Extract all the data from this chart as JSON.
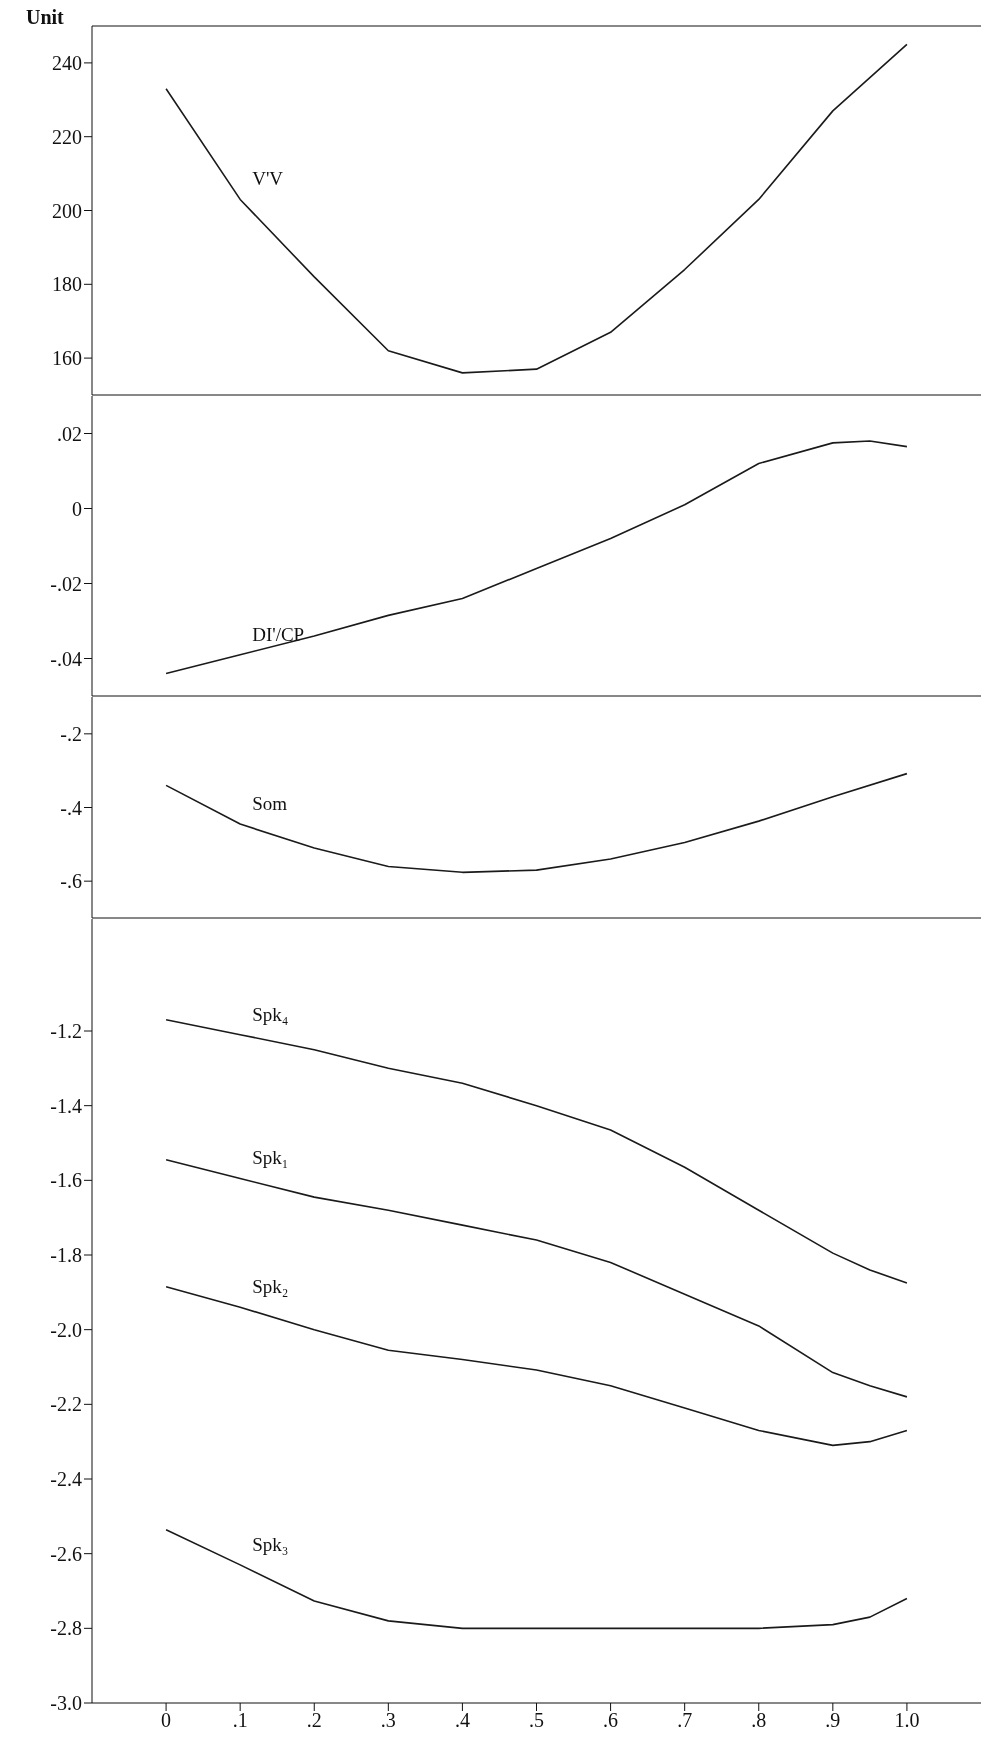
{
  "chart_data": [
    {
      "type": "line",
      "ylabel": "Unit",
      "x": [
        0,
        0.1,
        0.2,
        0.3,
        0.4,
        0.5,
        0.6,
        0.7,
        0.8,
        0.9,
        1.0
      ],
      "series": [
        {
          "name": "V'V",
          "color": "#1a1a1a",
          "values": [
            233,
            203,
            182,
            162,
            156,
            157,
            167,
            184,
            203,
            227,
            245
          ]
        }
      ],
      "xlim": [
        -0.1,
        1.1
      ],
      "ylim": [
        150,
        250
      ],
      "yticks": [
        160,
        180,
        200,
        220,
        240
      ],
      "tick_labels": "y"
    },
    {
      "type": "line",
      "x": [
        0,
        0.1,
        0.2,
        0.3,
        0.4,
        0.5,
        0.6,
        0.7,
        0.8,
        0.9,
        0.95,
        1.0
      ],
      "series": [
        {
          "name": "DI'/CP",
          "color": "#1a1a1a",
          "values": [
            -0.044,
            -0.039,
            -0.034,
            -0.0285,
            -0.024,
            -0.016,
            -0.008,
            0.001,
            0.012,
            0.0175,
            0.018,
            0.0165
          ]
        }
      ],
      "xlim": [
        -0.1,
        1.1
      ],
      "ylim": [
        -0.05,
        0.03
      ],
      "yticks": [
        {
          "value": -0.04,
          "label": "-.04"
        },
        {
          "value": -0.02,
          "label": "-.02"
        },
        0,
        {
          "value": 0.02,
          "label": ".02"
        }
      ],
      "tick_labels": "y"
    },
    {
      "type": "line",
      "x": [
        0,
        0.1,
        0.2,
        0.3,
        0.4,
        0.5,
        0.6,
        0.7,
        0.8,
        0.9,
        1.0
      ],
      "series": [
        {
          "name": "Som",
          "color": "#1a1a1a",
          "values": [
            -0.34,
            -0.445,
            -0.51,
            -0.56,
            -0.576,
            -0.57,
            -0.54,
            -0.495,
            -0.437,
            -0.371,
            -0.308
          ]
        }
      ],
      "xlim": [
        -0.1,
        1.1
      ],
      "ylim": [
        -0.7,
        -0.1
      ],
      "yticks": [
        {
          "value": -0.6,
          "label": "-.6"
        },
        {
          "value": -0.4,
          "label": "-.4"
        },
        {
          "value": -0.2,
          "label": "-.2"
        }
      ],
      "tick_labels": "y"
    },
    {
      "type": "line",
      "x": [
        0,
        0.1,
        0.2,
        0.3,
        0.4,
        0.5,
        0.6,
        0.7,
        0.8,
        0.9,
        0.95,
        1.0
      ],
      "series": [
        {
          "name": "Spk₄",
          "color": "#1a1a1a",
          "values": [
            -1.17,
            -1.21,
            -1.25,
            -1.3,
            -1.34,
            -1.4,
            -1.465,
            -1.565,
            -1.68,
            -1.795,
            -1.84,
            -1.875
          ]
        },
        {
          "name": "Spk₁",
          "color": "#1a1a1a",
          "values": [
            -1.545,
            -1.595,
            -1.645,
            -1.68,
            -1.72,
            -1.76,
            -1.82,
            -1.905,
            -1.99,
            -2.115,
            -2.15,
            -2.18
          ]
        },
        {
          "name": "Spk₂",
          "color": "#1a1a1a",
          "values": [
            -1.885,
            -1.94,
            -2.0,
            -2.055,
            -2.08,
            -2.108,
            -2.15,
            -2.21,
            -2.27,
            -2.31,
            -2.3,
            -2.27
          ]
        },
        {
          "name": "Spk₃",
          "color": "#1a1a1a",
          "values": [
            -2.536,
            -2.63,
            -2.727,
            -2.78,
            -2.8,
            -2.8,
            -2.8,
            -2.8,
            -2.8,
            -2.79,
            -2.77,
            -2.72
          ]
        }
      ],
      "xlim": [
        -0.1,
        1.1
      ],
      "ylim": [
        -3.0,
        -0.9
      ],
      "yticks": [
        {
          "value": -3.0,
          "label": "-3.0"
        },
        -2.8,
        -2.6,
        -2.4,
        -2.2,
        {
          "value": -2.0,
          "label": "-2.0"
        },
        -1.8,
        -1.6,
        -1.4,
        -1.2
      ],
      "xticks": [
        0,
        {
          "value": 0.1,
          "label": ".1"
        },
        {
          "value": 0.2,
          "label": ".2"
        },
        {
          "value": 0.3,
          "label": ".3"
        },
        {
          "value": 0.4,
          "label": ".4"
        },
        {
          "value": 0.5,
          "label": ".5"
        },
        {
          "value": 0.6,
          "label": ".6"
        },
        {
          "value": 0.7,
          "label": ".7"
        },
        {
          "value": 0.8,
          "label": ".8"
        },
        {
          "value": 0.9,
          "label": ".9"
        },
        {
          "value": 1.0,
          "label": "1.0"
        }
      ]
    }
  ]
}
